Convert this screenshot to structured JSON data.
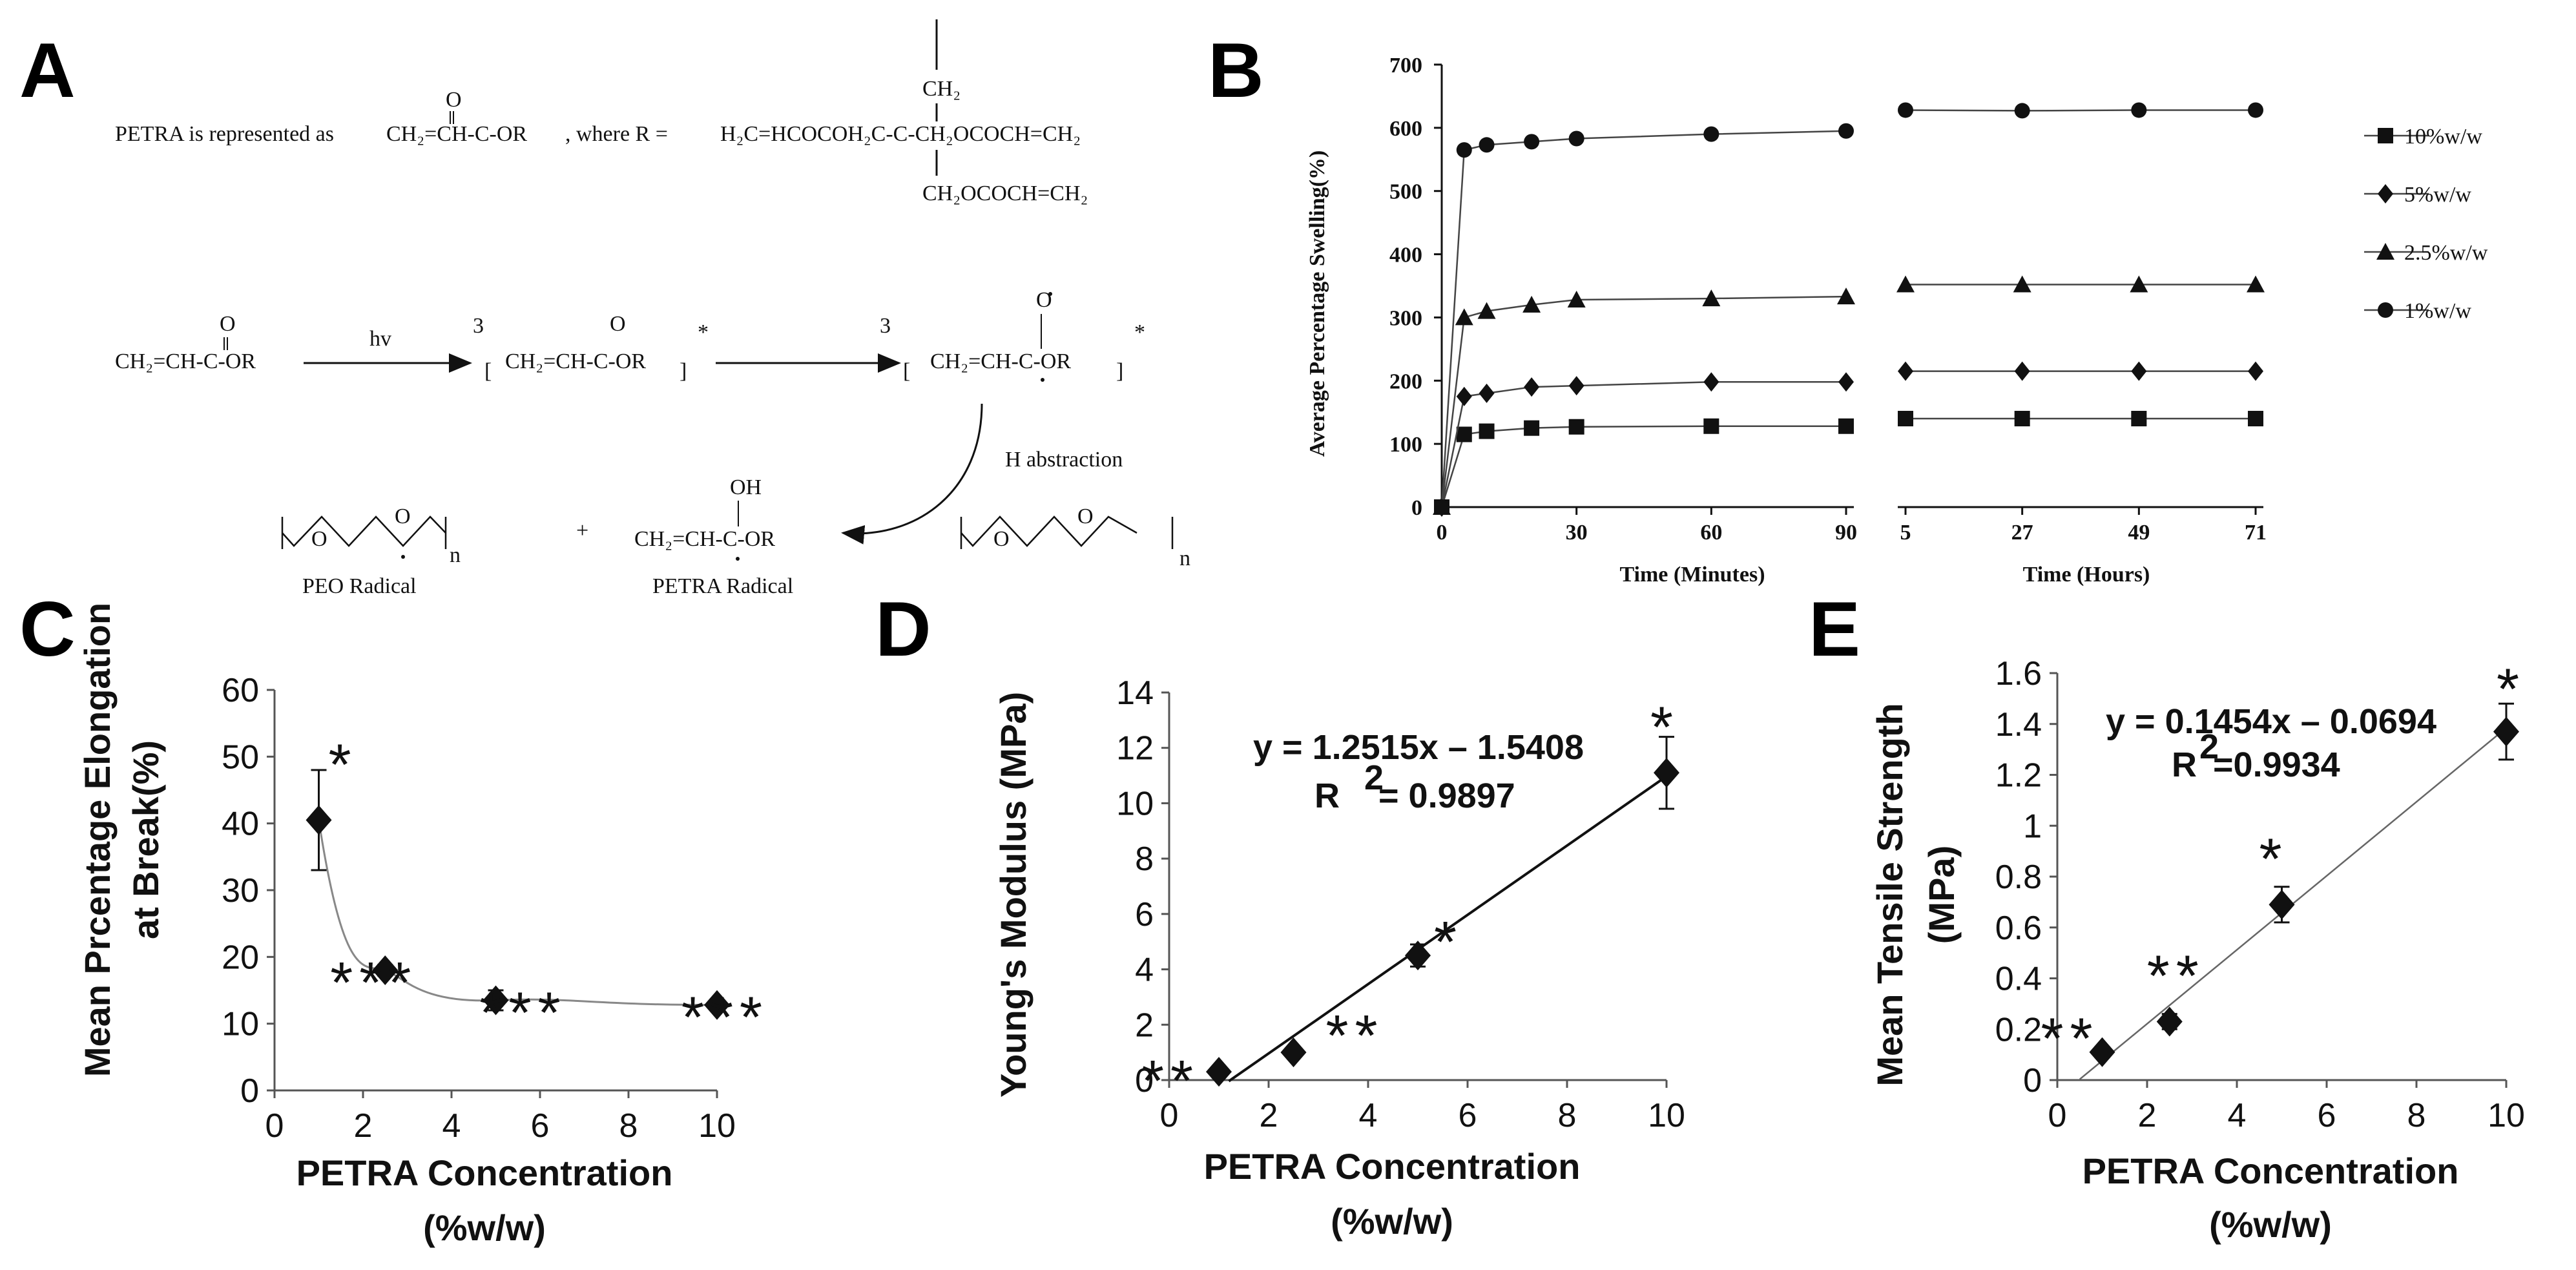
{
  "panels": {
    "a": {
      "letter": "A",
      "intro": "PETRA is represented as",
      "acrylate": "CH₂=CH-C-OR",
      "o": "O",
      "oh": "OH",
      "where": ", where R =",
      "r_main": "H₂C=HCOCOH₂C-C-CH₂OCOCH=CH₂",
      "r_top": "CH₂",
      "r_bottom": "CH₂OCOCH=CH₂",
      "hv": "hv",
      "triplet": "3",
      "star": "*",
      "bopen": "[",
      "bclose": "]",
      "habs": "H abstraction",
      "plus": "+",
      "n": "n",
      "peo_label": "PEO Radical",
      "petra_label": "PETRA Radical"
    },
    "b": {
      "letter": "B"
    },
    "c": {
      "letter": "C"
    },
    "d": {
      "letter": "D"
    },
    "e": {
      "letter": "E"
    }
  },
  "chart_data": [
    {
      "type": "line",
      "title": "",
      "ylabel": "Average Percentage Swelling(%)",
      "xlabel_left": "Time (Minutes)",
      "xlabel_right": "Time (Hours)",
      "ylim": [
        0,
        700
      ],
      "yticks": [
        0,
        100,
        200,
        300,
        400,
        500,
        600,
        700
      ],
      "x_minutes": [
        0,
        5,
        10,
        20,
        30,
        60,
        90
      ],
      "xticks_minutes": [
        0,
        30,
        60,
        90
      ],
      "x_hours": [
        5,
        27,
        49,
        71
      ],
      "legend_position": "right",
      "series": [
        {
          "name": "10%w/w",
          "marker": "square",
          "values_minutes": [
            0,
            115,
            120,
            125,
            127,
            128,
            128
          ],
          "values_hours": [
            140,
            140,
            140,
            140
          ]
        },
        {
          "name": "5%w/w",
          "marker": "diamond",
          "values_minutes": [
            0,
            175,
            180,
            190,
            192,
            198,
            198
          ],
          "values_hours": [
            215,
            215,
            215,
            215
          ]
        },
        {
          "name": "2.5%w/w",
          "marker": "triangle",
          "values_minutes": [
            0,
            300,
            310,
            320,
            328,
            330,
            333
          ],
          "values_hours": [
            352,
            352,
            352,
            352
          ]
        },
        {
          "name": "1%w/w",
          "marker": "circle",
          "values_minutes": [
            0,
            565,
            573,
            578,
            583,
            590,
            595
          ],
          "values_hours": [
            628,
            627,
            628,
            628
          ]
        }
      ]
    },
    {
      "type": "scatter",
      "ylabel_lines": [
        "Mean Prcentage Elongation",
        "at Break(%)"
      ],
      "xlabel_lines": [
        "PETRA Concentration",
        "(%w/w)"
      ],
      "xlim": [
        0,
        10
      ],
      "ylim": [
        0,
        60
      ],
      "xticks": [
        0,
        2,
        4,
        6,
        8,
        10
      ],
      "yticks": [
        0,
        10,
        20,
        30,
        40,
        50,
        60
      ],
      "x": [
        1,
        2.5,
        5,
        10
      ],
      "y": [
        40.5,
        18,
        13.5,
        12.8
      ],
      "err": [
        7.5,
        0.8,
        1.5,
        0.5
      ],
      "significance": [
        "*",
        "***",
        "***",
        "***"
      ],
      "trend": "smooth curve"
    },
    {
      "type": "scatter",
      "ylabel": "Young's Modulus (MPa)",
      "xlabel_lines": [
        "PETRA Concentration",
        "(%w/w)"
      ],
      "xlim": [
        0,
        10
      ],
      "ylim": [
        0,
        14
      ],
      "xticks": [
        0,
        2,
        4,
        6,
        8,
        10
      ],
      "yticks": [
        0,
        2,
        4,
        6,
        8,
        10,
        12,
        14
      ],
      "x": [
        1,
        2.5,
        5,
        10
      ],
      "y": [
        0.3,
        1.0,
        4.5,
        11.1
      ],
      "err": [
        0.1,
        0.15,
        0.4,
        1.3
      ],
      "significance": [
        "**",
        "**",
        "*",
        "*"
      ],
      "equation": "y = 1.2515x – 1.5408",
      "r2_prefix": "R",
      "r2_sup": "2",
      "r2_value": " = 0.9897",
      "fit": {
        "slope": 1.2515,
        "intercept": -1.5408
      }
    },
    {
      "type": "scatter",
      "ylabel_lines": [
        "Mean Tensile Strength",
        "(MPa)"
      ],
      "xlabel_lines": [
        "PETRA Concentration",
        "(%w/w)"
      ],
      "xlim": [
        0,
        10
      ],
      "ylim": [
        0,
        1.6
      ],
      "xticks": [
        0,
        2,
        4,
        6,
        8,
        10
      ],
      "yticks": [
        0,
        0.2,
        0.4,
        0.6,
        0.8,
        1,
        1.2,
        1.4,
        1.6
      ],
      "x": [
        1,
        2.5,
        5,
        10
      ],
      "y": [
        0.11,
        0.23,
        0.69,
        1.37
      ],
      "err": [
        0.02,
        0.03,
        0.07,
        0.11
      ],
      "significance": [
        "**",
        "**",
        "*",
        "*"
      ],
      "equation": "y = 0.1454x – 0.0694",
      "r2_prefix": "R",
      "r2_sup": "2",
      "r2_value": "=0.9934",
      "fit": {
        "slope": 0.1454,
        "intercept": -0.0694
      }
    }
  ]
}
